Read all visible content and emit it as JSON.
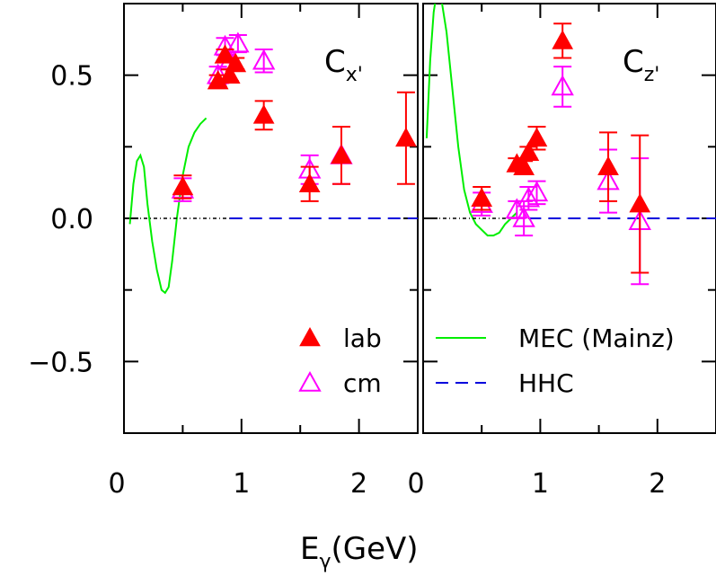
{
  "chart_data": [
    {
      "type": "scatter",
      "panel": "Cx'",
      "label_main": "C",
      "label_sub": "x'",
      "xlim": [
        0,
        2.5
      ],
      "ylim": [
        -0.75,
        0.75
      ],
      "xticks": [
        "0",
        "1",
        "2"
      ],
      "xtick_values": [
        0,
        1,
        2
      ],
      "yticks": [
        "0.5",
        "0.0",
        "−0.5"
      ],
      "ytick_values": [
        0.5,
        0.0,
        -0.5
      ],
      "series": [
        {
          "name": "lab",
          "marker": "filled-triangle",
          "color": "#ff0000",
          "points": [
            {
              "x": 0.5,
              "y": 0.11,
              "err": 0.04
            },
            {
              "x": 0.8,
              "y": 0.48,
              "err": 0.02
            },
            {
              "x": 0.86,
              "y": 0.57,
              "err": 0.02
            },
            {
              "x": 0.9,
              "y": 0.5,
              "err": 0.02
            },
            {
              "x": 0.95,
              "y": 0.54,
              "err": 0.02
            },
            {
              "x": 1.19,
              "y": 0.36,
              "err": 0.05
            },
            {
              "x": 1.58,
              "y": 0.12,
              "err": 0.06
            },
            {
              "x": 1.85,
              "y": 0.22,
              "err": 0.1
            },
            {
              "x": 2.4,
              "y": 0.28,
              "err": 0.16
            }
          ]
        },
        {
          "name": "cm",
          "marker": "open-triangle",
          "color": "#ff00ff",
          "points": [
            {
              "x": 0.5,
              "y": 0.1,
              "err": 0.04
            },
            {
              "x": 0.8,
              "y": 0.5,
              "err": 0.03
            },
            {
              "x": 0.86,
              "y": 0.6,
              "err": 0.03
            },
            {
              "x": 0.9,
              "y": 0.55,
              "err": 0.03
            },
            {
              "x": 0.97,
              "y": 0.61,
              "err": 0.03
            },
            {
              "x": 1.19,
              "y": 0.55,
              "err": 0.04
            },
            {
              "x": 1.58,
              "y": 0.17,
              "err": 0.05
            },
            {
              "x": 1.85,
              "y": 0.22,
              "err": 0.1
            }
          ]
        }
      ],
      "curves": [
        {
          "name": "MEC (Mainz)",
          "color": "#00ee00",
          "style": "solid",
          "x": [
            0.05,
            0.08,
            0.11,
            0.14,
            0.17,
            0.2,
            0.24,
            0.28,
            0.32,
            0.35,
            0.38,
            0.41,
            0.45,
            0.5,
            0.55,
            0.6,
            0.65,
            0.7
          ],
          "y": [
            -0.02,
            0.12,
            0.2,
            0.22,
            0.18,
            0.05,
            -0.08,
            -0.18,
            -0.25,
            -0.26,
            -0.24,
            -0.15,
            0.0,
            0.15,
            0.25,
            0.3,
            0.33,
            0.35
          ]
        },
        {
          "name": "HHC",
          "color": "#0000dd",
          "style": "dashed",
          "x": [
            0.9,
            2.5
          ],
          "y": [
            0.0,
            0.0
          ]
        },
        {
          "name": "",
          "color": "#000000",
          "style": "dash-dot",
          "x": [
            0,
            0.9
          ],
          "y": [
            0.0,
            0.0
          ]
        }
      ],
      "legend": [
        {
          "text": "lab",
          "marker": "filled-triangle",
          "color": "#ff0000"
        },
        {
          "text": "cm",
          "marker": "open-triangle",
          "color": "#ff00ff"
        }
      ],
      "legend_placement": "bottom-right"
    },
    {
      "type": "scatter",
      "panel": "Cz'",
      "label_main": "C",
      "label_sub": "z'",
      "xlim": [
        0,
        2.5
      ],
      "ylim": [
        -0.75,
        0.75
      ],
      "xticks": [
        "0",
        "1",
        "2"
      ],
      "xtick_values": [
        0,
        1,
        2
      ],
      "series": [
        {
          "name": "lab",
          "marker": "filled-triangle",
          "color": "#ff0000",
          "points": [
            {
              "x": 0.5,
              "y": 0.07,
              "err": 0.04
            },
            {
              "x": 0.8,
              "y": 0.19,
              "err": 0.02
            },
            {
              "x": 0.86,
              "y": 0.18,
              "err": 0.02
            },
            {
              "x": 0.9,
              "y": 0.23,
              "err": 0.02
            },
            {
              "x": 0.97,
              "y": 0.28,
              "err": 0.04
            },
            {
              "x": 1.19,
              "y": 0.62,
              "err": 0.06
            },
            {
              "x": 1.58,
              "y": 0.18,
              "err": 0.12
            },
            {
              "x": 1.85,
              "y": 0.05,
              "err": 0.24
            }
          ]
        },
        {
          "name": "cm",
          "marker": "open-triangle",
          "color": "#ff00ff",
          "points": [
            {
              "x": 0.5,
              "y": 0.05,
              "err": 0.04
            },
            {
              "x": 0.8,
              "y": 0.03,
              "err": 0.03
            },
            {
              "x": 0.86,
              "y": 0.0,
              "err": 0.06
            },
            {
              "x": 0.9,
              "y": 0.07,
              "err": 0.04
            },
            {
              "x": 0.97,
              "y": 0.09,
              "err": 0.04
            },
            {
              "x": 1.19,
              "y": 0.46,
              "err": 0.07
            },
            {
              "x": 1.58,
              "y": 0.13,
              "err": 0.11
            },
            {
              "x": 1.85,
              "y": -0.01,
              "err": 0.22
            }
          ]
        }
      ],
      "curves": [
        {
          "name": "MEC (Mainz)",
          "color": "#00ee00",
          "style": "solid",
          "x": [
            0.03,
            0.06,
            0.09,
            0.12,
            0.15,
            0.2,
            0.25,
            0.3,
            0.35,
            0.4,
            0.45,
            0.5,
            0.55,
            0.6,
            0.65,
            0.7,
            0.75,
            0.8
          ],
          "y": [
            0.28,
            0.55,
            0.72,
            0.8,
            0.78,
            0.65,
            0.45,
            0.25,
            0.1,
            0.02,
            -0.02,
            -0.04,
            -0.06,
            -0.06,
            -0.05,
            -0.02,
            0.0,
            0.02
          ]
        },
        {
          "name": "HHC",
          "color": "#0000dd",
          "style": "dashed",
          "x": [
            0.9,
            2.5
          ],
          "y": [
            0.0,
            0.0
          ]
        },
        {
          "name": "",
          "color": "#000000",
          "style": "dash-dot",
          "x": [
            0,
            0.9
          ],
          "y": [
            0.0,
            0.0
          ]
        }
      ],
      "legend": [
        {
          "text": "MEC (Mainz)",
          "line": "solid",
          "color": "#00ee00"
        },
        {
          "text": "HHC",
          "line": "dashed",
          "color": "#0000dd"
        }
      ],
      "legend_placement": "bottom-right"
    }
  ],
  "xlabel": {
    "main": "E",
    "sub": "γ",
    "suffix": "(GeV)"
  }
}
